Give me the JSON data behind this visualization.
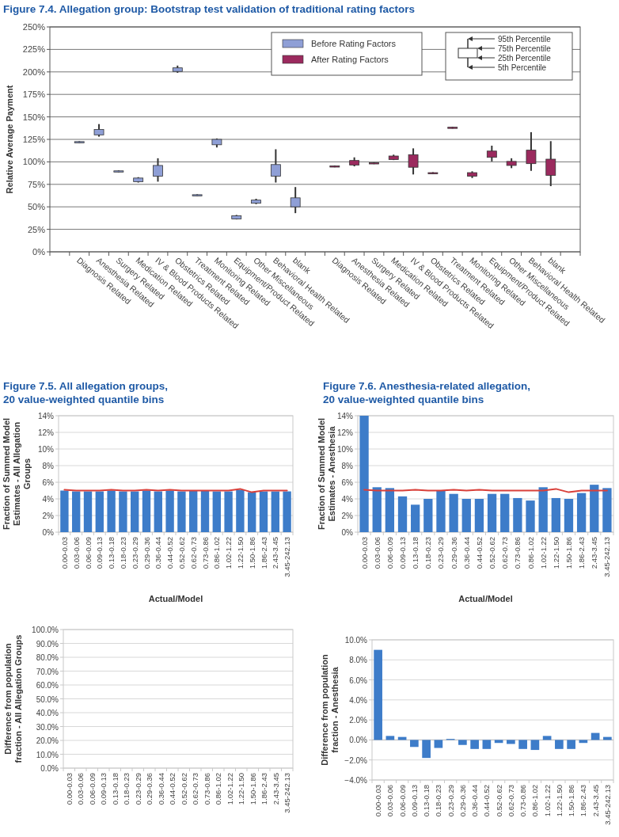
{
  "chart_data": [
    {
      "type": "box",
      "title": "Figure 7.4.  Allegation group: Bootstrap test validation of traditional rating factors",
      "ylabel": "Relative Average Payment",
      "categories": [
        null,
        "Diagnosis Related",
        "Anesthesia Related",
        "Surgery Related",
        "Medication Related",
        "IV & Blood Products Related",
        "Obstetrics Related",
        "Treatment Related",
        "Monitoring Related",
        "Equipment/Product Related",
        "Other Miscellaneous",
        "Behavioral Health Related",
        "blank",
        null,
        "Diagnosis Related",
        "Anesthesia Related",
        "Surgery Related",
        "Medication Related",
        "IV & Blood Products Related",
        "Obstetrics Related",
        "Treatment Related",
        "Monitoring Related",
        "Equipment/Product Related",
        "Other Miscellaneous",
        "Behavioral Health Related",
        "blank",
        null
      ],
      "series": [
        {
          "name": "Before Rating Factors",
          "color": "#8f9fd6",
          "boxes": [
            null,
            {
              "low": 121,
              "q1": 121.5,
              "q3": 122.5,
              "high": 123
            },
            {
              "low": 128,
              "q1": 130,
              "q3": 136,
              "high": 142
            },
            {
              "low": 88.5,
              "q1": 89,
              "q3": 90,
              "high": 90.5
            },
            {
              "low": 77,
              "q1": 78,
              "q3": 82,
              "high": 83
            },
            {
              "low": 78,
              "q1": 84,
              "q3": 96,
              "high": 104
            },
            {
              "low": 199,
              "q1": 200.5,
              "q3": 204.5,
              "high": 207
            },
            {
              "low": 62,
              "q1": 62.5,
              "q3": 63.5,
              "high": 64
            },
            {
              "low": 116,
              "q1": 119,
              "q3": 125,
              "high": 126
            },
            {
              "low": 36,
              "q1": 36.5,
              "q3": 40,
              "high": 41
            },
            {
              "low": 53,
              "q1": 54,
              "q3": 57.5,
              "high": 59
            },
            {
              "low": 77,
              "q1": 84,
              "q3": 97,
              "high": 114
            },
            {
              "low": 43,
              "q1": 50,
              "q3": 60,
              "high": 72
            },
            null,
            null,
            null,
            null,
            null,
            null,
            null,
            null,
            null,
            null,
            null,
            null,
            null,
            null
          ]
        },
        {
          "name": "After Rating Factors",
          "color": "#9b2a5e",
          "boxes": [
            null,
            null,
            null,
            null,
            null,
            null,
            null,
            null,
            null,
            null,
            null,
            null,
            null,
            null,
            {
              "low": 94,
              "q1": 94.5,
              "q3": 95.5,
              "high": 96
            },
            {
              "low": 95,
              "q1": 96.5,
              "q3": 101.5,
              "high": 105
            },
            {
              "low": 97.5,
              "q1": 98,
              "q3": 99,
              "high": 99.5
            },
            {
              "low": 102,
              "q1": 102.5,
              "q3": 106.5,
              "high": 108
            },
            {
              "low": 86,
              "q1": 94,
              "q3": 108,
              "high": 115
            },
            {
              "low": 86.5,
              "q1": 87,
              "q3": 88,
              "high": 88.5
            },
            {
              "low": 137,
              "q1": 137.5,
              "q3": 138.5,
              "high": 139
            },
            {
              "low": 82,
              "q1": 84,
              "q3": 88,
              "high": 89.5
            },
            {
              "low": 100.5,
              "q1": 105,
              "q3": 112,
              "high": 118
            },
            {
              "low": 93,
              "q1": 96,
              "q3": 100.5,
              "high": 104
            },
            {
              "low": 90,
              "q1": 98,
              "q3": 113,
              "high": 133
            },
            {
              "low": 73,
              "q1": 85,
              "q3": 103,
              "high": 123
            },
            null
          ]
        }
      ],
      "ylim": [
        0,
        250
      ],
      "yticks": [
        {
          "value": 0,
          "label": "0%"
        },
        {
          "value": 25,
          "label": "25%"
        },
        {
          "value": 50,
          "label": "50%"
        },
        {
          "value": 75,
          "label": "75%"
        },
        {
          "value": 100,
          "label": "100%"
        },
        {
          "value": 125,
          "label": "125%"
        },
        {
          "value": 150,
          "label": "150%"
        },
        {
          "value": 175,
          "label": "175%"
        },
        {
          "value": 200,
          "label": "200%"
        },
        {
          "value": 225,
          "label": "225%"
        },
        {
          "value": 250,
          "label": "250%"
        }
      ],
      "grid": "y",
      "legend": "top right",
      "annotations": [
        "95th Percentile",
        "75th Percentile",
        "25th Percentile",
        "5th Percentile"
      ]
    },
    {
      "type": "bar",
      "title": "Figure 7.5.  All allegation groups, 20 value-weighted quantile bins",
      "ylabel": "Fraction of Summed Model Estimates - All Allegation Groups",
      "xlabel": "Actual/Model",
      "categories": [
        "0.00-0.03",
        "0.03-0.06",
        "0.06-0.09",
        "0.09-0.13",
        "0.13-0.18",
        "0.18-0.23",
        "0.23-0.29",
        "0.29-0.36",
        "0.36-0.44",
        "0.44-0.52",
        "0.52-0.62",
        "0.62-0.73",
        "0.73-0.86",
        "0.86-1.02",
        "1.02-1.22",
        "1.22-1.50",
        "1.50-1.86",
        "1.86-2.43",
        "2.43-3.45",
        "3.45-242.13"
      ],
      "series": [
        {
          "type": "bar",
          "color": "#3d7cc9",
          "values": [
            5.0,
            4.9,
            4.9,
            4.9,
            5.0,
            4.9,
            4.9,
            5.0,
            4.9,
            5.0,
            4.9,
            5.0,
            5.0,
            4.9,
            4.9,
            5.1,
            4.8,
            4.9,
            4.9,
            4.9
          ]
        },
        {
          "type": "line",
          "color": "#d9403a",
          "values": [
            5.1,
            5.0,
            5.0,
            5.0,
            5.1,
            5.0,
            5.0,
            5.1,
            5.0,
            5.1,
            5.0,
            5.0,
            5.0,
            5.0,
            5.0,
            5.2,
            4.8,
            5.0,
            5.0,
            5.0
          ]
        }
      ],
      "ylim": [
        0,
        14
      ],
      "yticks": [
        {
          "value": 0,
          "label": "0%"
        },
        {
          "value": 2,
          "label": "2%"
        },
        {
          "value": 4,
          "label": "4%"
        },
        {
          "value": 6,
          "label": "6%"
        },
        {
          "value": 8,
          "label": "8%"
        },
        {
          "value": 10,
          "label": "10%"
        },
        {
          "value": 12,
          "label": "12%"
        },
        {
          "value": 14,
          "label": "14%"
        }
      ],
      "grid": "y"
    },
    {
      "type": "bar",
      "title": "Figure 7.6.  Anesthesia-related allegation, 20 value-weighted quantile bins",
      "ylabel": "Fraction of Summed Model Estimates - Anesthesia",
      "xlabel": "Actual/Model",
      "categories": [
        "0.00-0.03",
        "0.03-0.06",
        "0.06-0.09",
        "0.09-0.13",
        "0.13-0.18",
        "0.18-0.23",
        "0.23-0.29",
        "0.29-0.36",
        "0.36-0.44",
        "0.44-0.52",
        "0.52-0.62",
        "0.62-0.73",
        "0.73-0.86",
        "0.86-1.02",
        "1.02-1.22",
        "1.22-1.50",
        "1.50-1.86",
        "1.86-2.43",
        "2.43-3.45",
        "3.45-242.13"
      ],
      "series": [
        {
          "type": "bar",
          "color": "#3d7cc9",
          "values": [
            14.0,
            5.4,
            5.3,
            4.3,
            3.3,
            4.0,
            5.0,
            4.6,
            4.0,
            4.0,
            4.6,
            4.6,
            4.1,
            3.8,
            5.4,
            4.1,
            4.0,
            4.7,
            5.7,
            5.3
          ]
        },
        {
          "type": "line",
          "color": "#d9403a",
          "values": [
            5.1,
            5.0,
            5.0,
            5.0,
            5.1,
            5.0,
            5.0,
            5.1,
            5.0,
            5.1,
            5.0,
            5.0,
            5.0,
            5.0,
            5.0,
            5.2,
            4.8,
            5.0,
            5.0,
            5.0
          ]
        }
      ],
      "ylim": [
        0,
        14
      ],
      "yticks": [
        {
          "value": 0,
          "label": "0%"
        },
        {
          "value": 2,
          "label": "2%"
        },
        {
          "value": 4,
          "label": "4%"
        },
        {
          "value": 6,
          "label": "6%"
        },
        {
          "value": 8,
          "label": "8%"
        },
        {
          "value": 10,
          "label": "10%"
        },
        {
          "value": 12,
          "label": "12%"
        },
        {
          "value": 14,
          "label": "14%"
        }
      ],
      "grid": "y"
    },
    {
      "type": "bar",
      "ylabel": "Difference from population fraction - All Allegation Groups",
      "categories": [
        "0.00-0.03",
        "0.03-0.06",
        "0.06-0.09",
        "0.09-0.13",
        "0.13-0.18",
        "0.18-0.23",
        "0.23-0.29",
        "0.29-0.36",
        "0.36-0.44",
        "0.44-0.52",
        "0.52-0.62",
        "0.62-0.73",
        "0.73-0.86",
        "0.86-1.02",
        "1.02-1.22",
        "1.22-1.50",
        "1.50-1.86",
        "1.86-2.43",
        "2.43-3.45",
        "3.45-242.13"
      ],
      "series": [
        {
          "type": "bar",
          "values": [
            null,
            null,
            null,
            null,
            null,
            null,
            null,
            null,
            null,
            null,
            null,
            null,
            null,
            null,
            null,
            null,
            null,
            null,
            null,
            null
          ]
        }
      ],
      "ylim": [
        0,
        100
      ],
      "yticks": [
        {
          "value": 0,
          "label": "0.0%"
        },
        {
          "value": 10,
          "label": "10.0%"
        },
        {
          "value": 20,
          "label": "20.0%"
        },
        {
          "value": 30,
          "label": "30.0%"
        },
        {
          "value": 40,
          "label": "40.0%"
        },
        {
          "value": 50,
          "label": "50.0%"
        },
        {
          "value": 60,
          "label": "60.0%"
        },
        {
          "value": 70,
          "label": "70.0%"
        },
        {
          "value": 80,
          "label": "80.0%"
        },
        {
          "value": 90,
          "label": "90.0%"
        },
        {
          "value": 100,
          "label": "100.0%"
        }
      ],
      "grid": "y"
    },
    {
      "type": "bar",
      "ylabel": "Difference from population fraction - Anesthesia",
      "categories": [
        "0.00-0.03",
        "0.03-0.06",
        "0.06-0.09",
        "0.09-0.13",
        "0.13-0.18",
        "0.18-0.23",
        "0.23-0.29",
        "0.29-0.36",
        "0.36-0.44",
        "0.44-0.52",
        "0.52-0.62",
        "0.62-0.73",
        "0.73-0.86",
        "0.86-1.02",
        "1.02-1.22",
        "1.22-1.50",
        "1.50-1.86",
        "1.86-2.43",
        "2.43-3.45",
        "3.45-242.13"
      ],
      "series": [
        {
          "type": "bar",
          "color": "#3d7cc9",
          "values": [
            9.0,
            0.4,
            0.3,
            -0.7,
            -1.8,
            -0.8,
            0.1,
            -0.5,
            -0.9,
            -0.9,
            -0.3,
            -0.4,
            -0.9,
            -1.0,
            0.4,
            -0.9,
            -0.9,
            -0.3,
            0.7,
            0.3
          ]
        }
      ],
      "ylim": [
        -4,
        10
      ],
      "yticks": [
        {
          "value": -4,
          "label": "−4.0%"
        },
        {
          "value": -2,
          "label": "−2.0%"
        },
        {
          "value": 0,
          "label": "0.0%"
        },
        {
          "value": 2,
          "label": "2.0%"
        },
        {
          "value": 4,
          "label": "4.0%"
        },
        {
          "value": 6,
          "label": "6.0%"
        },
        {
          "value": 8,
          "label": "8.0%"
        },
        {
          "value": 10,
          "label": "10.0%"
        }
      ],
      "grid": "y"
    }
  ]
}
